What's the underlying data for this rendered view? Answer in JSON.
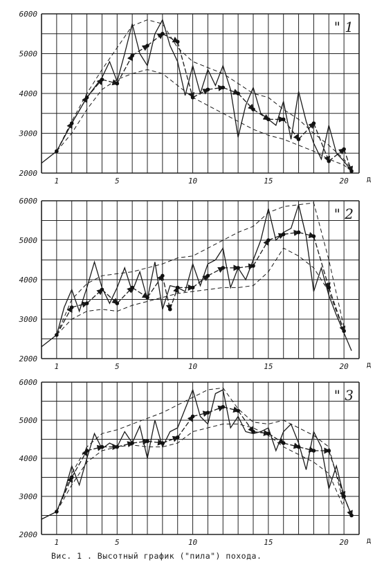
{
  "caption": "Вис. 1 . Высотный график (\"пила\") похода.",
  "chart_data": [
    {
      "type": "line",
      "panel_label": "\" 1",
      "x_unit": "д",
      "xlim": [
        0,
        21
      ],
      "ylim": [
        2000,
        6000
      ],
      "x_ticks": [
        "1",
        "5",
        "10",
        "15",
        "20"
      ],
      "y_ticks": [
        "2000",
        "3000",
        "4000",
        "5000",
        "6000"
      ],
      "grid": true,
      "series": [
        {
          "role": "profile",
          "x": [
            0,
            1,
            2,
            3,
            4,
            4.5,
            5,
            5.5,
            6,
            6.5,
            7,
            7.5,
            8,
            8.5,
            9,
            9.5,
            10,
            10.5,
            11,
            11.5,
            12,
            12.5,
            13,
            13.5,
            14,
            14.5,
            15,
            15.5,
            16,
            16.5,
            17,
            17.5,
            18,
            18.5,
            19,
            19.5,
            20,
            20.5
          ],
          "y": [
            2250,
            2550,
            3250,
            3900,
            4400,
            4800,
            4300,
            5000,
            5750,
            5000,
            4700,
            5500,
            5850,
            5200,
            4800,
            3950,
            4700,
            4000,
            4600,
            4200,
            4700,
            4100,
            2900,
            3700,
            4150,
            3500,
            3350,
            3200,
            3800,
            2850,
            4050,
            3300,
            2750,
            2350,
            3200,
            2500,
            2300,
            2050
          ]
        },
        {
          "role": "daily",
          "x": [
            1,
            2,
            3,
            4,
            5,
            6,
            7,
            8,
            9,
            10,
            11,
            12,
            13,
            14,
            15,
            16,
            17,
            18,
            19,
            20,
            20.5
          ],
          "y": [
            2550,
            3250,
            3900,
            4350,
            4250,
            4950,
            5200,
            5500,
            5300,
            3900,
            4100,
            4150,
            4000,
            3600,
            3350,
            3350,
            2850,
            3250,
            2300,
            2600,
            2050
          ]
        },
        {
          "role": "envelope-upper",
          "x": [
            1,
            2,
            3,
            4,
            5,
            6,
            7,
            8,
            9,
            10,
            11,
            12,
            13,
            14,
            15,
            16,
            17,
            18,
            19,
            20,
            20.5
          ],
          "y": [
            2550,
            3300,
            4000,
            4600,
            5150,
            5700,
            5850,
            5750,
            5150,
            4800,
            4650,
            4500,
            4250,
            4000,
            3900,
            3600,
            3350,
            3000,
            2700,
            2350,
            2100
          ]
        },
        {
          "role": "envelope-lower",
          "x": [
            1,
            2,
            3,
            4,
            5,
            6,
            7,
            8,
            9,
            10,
            11,
            12,
            13,
            14,
            15,
            16,
            17,
            18,
            19,
            20,
            20.5
          ],
          "y": [
            2550,
            3000,
            3600,
            4100,
            4350,
            4500,
            4600,
            4500,
            4200,
            3900,
            3700,
            3500,
            3300,
            3100,
            2950,
            2850,
            2700,
            2550,
            2350,
            2200,
            2050
          ]
        }
      ]
    },
    {
      "type": "line",
      "panel_label": "\" 2",
      "x_unit": "д",
      "xlim": [
        0,
        21
      ],
      "ylim": [
        2000,
        6000
      ],
      "x_ticks": [
        "1",
        "5",
        "10",
        "15",
        "20"
      ],
      "y_ticks": [
        "2000",
        "3000",
        "4000",
        "5000",
        "6000"
      ],
      "grid": true,
      "series": [
        {
          "role": "profile",
          "x": [
            0,
            1,
            1.5,
            2,
            2.5,
            3,
            3.5,
            4,
            4.5,
            5,
            5.5,
            6,
            6.5,
            7,
            7.5,
            8,
            8.5,
            9,
            9.5,
            10,
            10.5,
            11,
            11.5,
            12,
            12.5,
            13,
            13.5,
            14,
            14.5,
            15,
            15.5,
            16,
            16.5,
            17,
            17.5,
            18,
            18.5,
            19,
            19.5,
            20,
            20.5
          ],
          "y": [
            2300,
            2600,
            3300,
            3750,
            3200,
            3800,
            4450,
            3800,
            3400,
            3800,
            4300,
            3700,
            4200,
            3500,
            4450,
            3250,
            3850,
            3800,
            3700,
            4400,
            3850,
            4400,
            4500,
            4800,
            3800,
            4300,
            4000,
            4500,
            5000,
            5800,
            5000,
            5200,
            5300,
            5900,
            5100,
            3700,
            4300,
            3600,
            3100,
            2650,
            2200
          ]
        },
        {
          "role": "daily",
          "x": [
            1,
            2,
            3,
            4,
            5,
            6,
            7,
            8,
            8.5,
            9,
            10,
            11,
            12,
            13,
            14,
            15,
            16,
            17,
            18,
            19,
            20
          ],
          "y": [
            2600,
            3300,
            3400,
            3750,
            3400,
            3800,
            3550,
            4100,
            3250,
            3800,
            3800,
            4100,
            4300,
            4300,
            4350,
            5000,
            5150,
            5200,
            5100,
            3800,
            2700
          ]
        },
        {
          "role": "envelope-upper",
          "x": [
            1,
            2,
            3,
            4,
            5,
            6,
            7,
            8,
            9,
            10,
            11,
            12,
            13,
            14,
            15,
            16,
            17,
            18,
            19,
            20
          ],
          "y": [
            2600,
            3500,
            3900,
            4100,
            4150,
            4200,
            4300,
            4400,
            4550,
            4600,
            4800,
            5000,
            5200,
            5350,
            5700,
            5850,
            5900,
            5950,
            4500,
            2800
          ]
        },
        {
          "role": "envelope-lower",
          "x": [
            1,
            2,
            3,
            4,
            5,
            6,
            7,
            8,
            9,
            10,
            11,
            12,
            13,
            14,
            15,
            16,
            17,
            18,
            19,
            20
          ],
          "y": [
            2600,
            3000,
            3200,
            3250,
            3200,
            3350,
            3450,
            3550,
            3650,
            3700,
            3750,
            3800,
            3800,
            3850,
            4200,
            4800,
            4600,
            4300,
            3700,
            2700
          ]
        }
      ]
    },
    {
      "type": "line",
      "panel_label": "\" 3",
      "x_unit": "д",
      "xlim": [
        0,
        21
      ],
      "ylim": [
        2000,
        6000
      ],
      "x_ticks": [
        "1",
        "5",
        "10",
        "15",
        "20"
      ],
      "y_ticks": [
        "2000",
        "3000",
        "4000",
        "5000",
        "6000"
      ],
      "grid": true,
      "series": [
        {
          "role": "profile",
          "x": [
            0,
            1,
            1.5,
            2,
            2.5,
            3,
            3.5,
            4,
            4.5,
            5,
            5.5,
            6,
            6.5,
            7,
            7.5,
            8,
            8.5,
            9,
            9.5,
            10,
            10.5,
            11,
            11.5,
            12,
            12.5,
            13,
            13.5,
            14,
            14.5,
            15,
            15.5,
            16,
            16.5,
            17,
            17.5,
            18,
            18.5,
            19,
            19.5,
            20,
            20.5
          ],
          "y": [
            2400,
            2600,
            3100,
            3800,
            3300,
            4000,
            4650,
            4250,
            4400,
            4300,
            4700,
            4400,
            4850,
            4000,
            5000,
            4300,
            4700,
            4800,
            5300,
            5800,
            5100,
            4900,
            5700,
            5800,
            4800,
            5100,
            4700,
            4650,
            4700,
            4800,
            4200,
            4700,
            4900,
            4400,
            3700,
            4700,
            4300,
            3200,
            3800,
            3000,
            2500
          ]
        },
        {
          "role": "daily",
          "x": [
            1,
            2,
            3,
            4,
            5,
            6,
            7,
            8,
            9,
            10,
            11,
            12,
            13,
            14,
            15,
            16,
            17,
            18,
            19,
            20,
            20.5
          ],
          "y": [
            2600,
            3500,
            4200,
            4300,
            4300,
            4400,
            4450,
            4400,
            4550,
            5100,
            5200,
            5350,
            5250,
            4700,
            4650,
            4400,
            4300,
            4200,
            4200,
            3000,
            2500
          ]
        },
        {
          "role": "envelope-upper",
          "x": [
            1,
            2,
            3,
            4,
            5,
            6,
            7,
            8,
            9,
            10,
            11,
            12,
            13,
            14,
            15,
            16,
            17,
            18,
            19,
            20
          ],
          "y": [
            2600,
            3600,
            4300,
            4650,
            4750,
            4900,
            5050,
            5200,
            5400,
            5600,
            5800,
            5850,
            5300,
            4950,
            4900,
            5000,
            4800,
            4600,
            4300,
            2800
          ]
        },
        {
          "role": "envelope-lower",
          "x": [
            1,
            2,
            3,
            4,
            5,
            6,
            7,
            8,
            9,
            10,
            11,
            12,
            13,
            14,
            15,
            16,
            17,
            18,
            19,
            20
          ],
          "y": [
            2600,
            3300,
            3900,
            4200,
            4300,
            4350,
            4300,
            4300,
            4400,
            4700,
            4800,
            4900,
            4900,
            4800,
            4600,
            4300,
            4100,
            3900,
            3600,
            2700
          ]
        }
      ]
    }
  ]
}
